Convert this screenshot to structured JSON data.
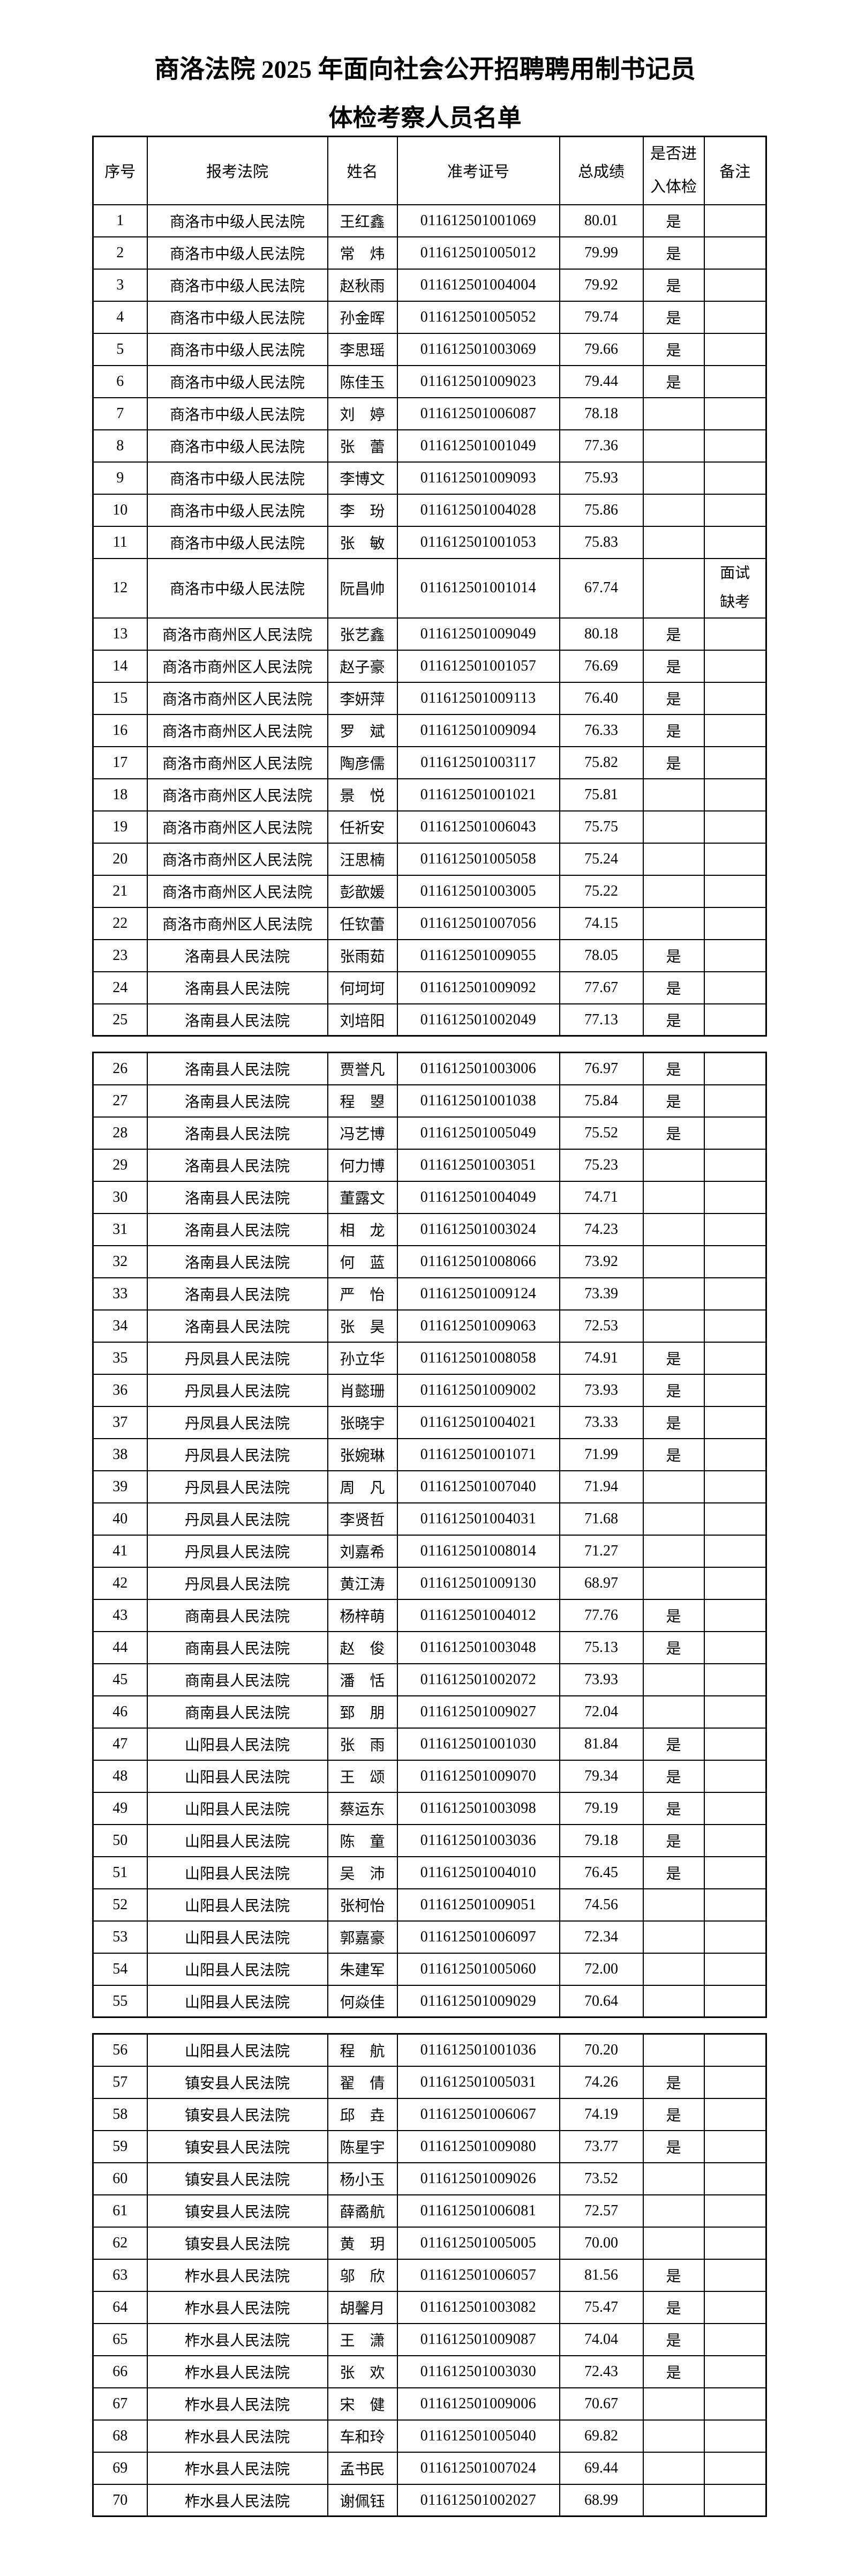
{
  "title_line1": "商洛法院 2025 年面向社会公开招聘聘用制书记员",
  "title_line2": "体检考察人员名单",
  "colors": {
    "text": "#000000",
    "border": "#000000",
    "background": "#ffffff"
  },
  "table": {
    "headers": {
      "index": "序号",
      "court": "报考法院",
      "name": "姓名",
      "ticket": "准考证号",
      "score": "总成绩",
      "enter": "是否进入体检",
      "remark": "备注"
    },
    "sections": [
      {
        "rows": [
          {
            "no": "1",
            "court": "商洛市中级人民法院",
            "name": "王红鑫",
            "ticket": "011612501001069",
            "score": "80.01",
            "enter": "是",
            "remark": ""
          },
          {
            "no": "2",
            "court": "商洛市中级人民法院",
            "name": "常　炜",
            "ticket": "011612501005012",
            "score": "79.99",
            "enter": "是",
            "remark": ""
          },
          {
            "no": "3",
            "court": "商洛市中级人民法院",
            "name": "赵秋雨",
            "ticket": "011612501004004",
            "score": "79.92",
            "enter": "是",
            "remark": ""
          },
          {
            "no": "4",
            "court": "商洛市中级人民法院",
            "name": "孙金晖",
            "ticket": "011612501005052",
            "score": "79.74",
            "enter": "是",
            "remark": ""
          },
          {
            "no": "5",
            "court": "商洛市中级人民法院",
            "name": "李思瑶",
            "ticket": "011612501003069",
            "score": "79.66",
            "enter": "是",
            "remark": ""
          },
          {
            "no": "6",
            "court": "商洛市中级人民法院",
            "name": "陈佳玉",
            "ticket": "011612501009023",
            "score": "79.44",
            "enter": "是",
            "remark": ""
          },
          {
            "no": "7",
            "court": "商洛市中级人民法院",
            "name": "刘　婷",
            "ticket": "011612501006087",
            "score": "78.18",
            "enter": "",
            "remark": ""
          },
          {
            "no": "8",
            "court": "商洛市中级人民法院",
            "name": "张　蕾",
            "ticket": "011612501001049",
            "score": "77.36",
            "enter": "",
            "remark": ""
          },
          {
            "no": "9",
            "court": "商洛市中级人民法院",
            "name": "李博文",
            "ticket": "011612501009093",
            "score": "75.93",
            "enter": "",
            "remark": ""
          },
          {
            "no": "10",
            "court": "商洛市中级人民法院",
            "name": "李　玢",
            "ticket": "011612501004028",
            "score": "75.86",
            "enter": "",
            "remark": ""
          },
          {
            "no": "11",
            "court": "商洛市中级人民法院",
            "name": "张　敏",
            "ticket": "011612501001053",
            "score": "75.83",
            "enter": "",
            "remark": ""
          },
          {
            "no": "12",
            "court": "商洛市中级人民法院",
            "name": "阮昌帅",
            "ticket": "011612501001014",
            "score": "67.74",
            "enter": "",
            "remark": "面试缺考"
          },
          {
            "no": "13",
            "court": "商洛市商州区人民法院",
            "name": "张艺鑫",
            "ticket": "011612501009049",
            "score": "80.18",
            "enter": "是",
            "remark": ""
          },
          {
            "no": "14",
            "court": "商洛市商州区人民法院",
            "name": "赵子豪",
            "ticket": "011612501001057",
            "score": "76.69",
            "enter": "是",
            "remark": ""
          },
          {
            "no": "15",
            "court": "商洛市商州区人民法院",
            "name": "李妍萍",
            "ticket": "011612501009113",
            "score": "76.40",
            "enter": "是",
            "remark": ""
          },
          {
            "no": "16",
            "court": "商洛市商州区人民法院",
            "name": "罗　斌",
            "ticket": "011612501009094",
            "score": "76.33",
            "enter": "是",
            "remark": ""
          },
          {
            "no": "17",
            "court": "商洛市商州区人民法院",
            "name": "陶彦儒",
            "ticket": "011612501003117",
            "score": "75.82",
            "enter": "是",
            "remark": ""
          },
          {
            "no": "18",
            "court": "商洛市商州区人民法院",
            "name": "景　悦",
            "ticket": "011612501001021",
            "score": "75.81",
            "enter": "",
            "remark": ""
          },
          {
            "no": "19",
            "court": "商洛市商州区人民法院",
            "name": "任祈安",
            "ticket": "011612501006043",
            "score": "75.75",
            "enter": "",
            "remark": ""
          },
          {
            "no": "20",
            "court": "商洛市商州区人民法院",
            "name": "汪思楠",
            "ticket": "011612501005058",
            "score": "75.24",
            "enter": "",
            "remark": ""
          },
          {
            "no": "21",
            "court": "商洛市商州区人民法院",
            "name": "彭歆媛",
            "ticket": "011612501003005",
            "score": "75.22",
            "enter": "",
            "remark": ""
          },
          {
            "no": "22",
            "court": "商洛市商州区人民法院",
            "name": "任钦蕾",
            "ticket": "011612501007056",
            "score": "74.15",
            "enter": "",
            "remark": ""
          },
          {
            "no": "23",
            "court": "洛南县人民法院",
            "name": "张雨茹",
            "ticket": "011612501009055",
            "score": "78.05",
            "enter": "是",
            "remark": ""
          },
          {
            "no": "24",
            "court": "洛南县人民法院",
            "name": "何坷坷",
            "ticket": "011612501009092",
            "score": "77.67",
            "enter": "是",
            "remark": ""
          },
          {
            "no": "25",
            "court": "洛南县人民法院",
            "name": "刘培阳",
            "ticket": "011612501002049",
            "score": "77.13",
            "enter": "是",
            "remark": ""
          }
        ]
      },
      {
        "rows": [
          {
            "no": "26",
            "court": "洛南县人民法院",
            "name": "贾誉凡",
            "ticket": "011612501003006",
            "score": "76.97",
            "enter": "是",
            "remark": ""
          },
          {
            "no": "27",
            "court": "洛南县人民法院",
            "name": "程　曌",
            "ticket": "011612501001038",
            "score": "75.84",
            "enter": "是",
            "remark": ""
          },
          {
            "no": "28",
            "court": "洛南县人民法院",
            "name": "冯艺博",
            "ticket": "011612501005049",
            "score": "75.52",
            "enter": "是",
            "remark": ""
          },
          {
            "no": "29",
            "court": "洛南县人民法院",
            "name": "何力博",
            "ticket": "011612501003051",
            "score": "75.23",
            "enter": "",
            "remark": ""
          },
          {
            "no": "30",
            "court": "洛南县人民法院",
            "name": "董露文",
            "ticket": "011612501004049",
            "score": "74.71",
            "enter": "",
            "remark": ""
          },
          {
            "no": "31",
            "court": "洛南县人民法院",
            "name": "相　龙",
            "ticket": "011612501003024",
            "score": "74.23",
            "enter": "",
            "remark": ""
          },
          {
            "no": "32",
            "court": "洛南县人民法院",
            "name": "何　蓝",
            "ticket": "011612501008066",
            "score": "73.92",
            "enter": "",
            "remark": ""
          },
          {
            "no": "33",
            "court": "洛南县人民法院",
            "name": "严　怡",
            "ticket": "011612501009124",
            "score": "73.39",
            "enter": "",
            "remark": ""
          },
          {
            "no": "34",
            "court": "洛南县人民法院",
            "name": "张　昊",
            "ticket": "011612501009063",
            "score": "72.53",
            "enter": "",
            "remark": ""
          },
          {
            "no": "35",
            "court": "丹凤县人民法院",
            "name": "孙立华",
            "ticket": "011612501008058",
            "score": "74.91",
            "enter": "是",
            "remark": ""
          },
          {
            "no": "36",
            "court": "丹凤县人民法院",
            "name": "肖懿珊",
            "ticket": "011612501009002",
            "score": "73.93",
            "enter": "是",
            "remark": ""
          },
          {
            "no": "37",
            "court": "丹凤县人民法院",
            "name": "张晓宇",
            "ticket": "011612501004021",
            "score": "73.33",
            "enter": "是",
            "remark": ""
          },
          {
            "no": "38",
            "court": "丹凤县人民法院",
            "name": "张婉琳",
            "ticket": "011612501001071",
            "score": "71.99",
            "enter": "是",
            "remark": ""
          },
          {
            "no": "39",
            "court": "丹凤县人民法院",
            "name": "周　凡",
            "ticket": "011612501007040",
            "score": "71.94",
            "enter": "",
            "remark": ""
          },
          {
            "no": "40",
            "court": "丹凤县人民法院",
            "name": "李贤哲",
            "ticket": "011612501004031",
            "score": "71.68",
            "enter": "",
            "remark": ""
          },
          {
            "no": "41",
            "court": "丹凤县人民法院",
            "name": "刘嘉希",
            "ticket": "011612501008014",
            "score": "71.27",
            "enter": "",
            "remark": ""
          },
          {
            "no": "42",
            "court": "丹凤县人民法院",
            "name": "黄江涛",
            "ticket": "011612501009130",
            "score": "68.97",
            "enter": "",
            "remark": ""
          },
          {
            "no": "43",
            "court": "商南县人民法院",
            "name": "杨梓萌",
            "ticket": "011612501004012",
            "score": "77.76",
            "enter": "是",
            "remark": ""
          },
          {
            "no": "44",
            "court": "商南县人民法院",
            "name": "赵　俊",
            "ticket": "011612501003048",
            "score": "75.13",
            "enter": "是",
            "remark": ""
          },
          {
            "no": "45",
            "court": "商南县人民法院",
            "name": "潘　恬",
            "ticket": "011612501002072",
            "score": "73.93",
            "enter": "",
            "remark": ""
          },
          {
            "no": "46",
            "court": "商南县人民法院",
            "name": "郅　朋",
            "ticket": "011612501009027",
            "score": "72.04",
            "enter": "",
            "remark": ""
          },
          {
            "no": "47",
            "court": "山阳县人民法院",
            "name": "张　雨",
            "ticket": "011612501001030",
            "score": "81.84",
            "enter": "是",
            "remark": ""
          },
          {
            "no": "48",
            "court": "山阳县人民法院",
            "name": "王　颂",
            "ticket": "011612501009070",
            "score": "79.34",
            "enter": "是",
            "remark": ""
          },
          {
            "no": "49",
            "court": "山阳县人民法院",
            "name": "蔡运东",
            "ticket": "011612501003098",
            "score": "79.19",
            "enter": "是",
            "remark": ""
          },
          {
            "no": "50",
            "court": "山阳县人民法院",
            "name": "陈　童",
            "ticket": "011612501003036",
            "score": "79.18",
            "enter": "是",
            "remark": ""
          },
          {
            "no": "51",
            "court": "山阳县人民法院",
            "name": "吴　沛",
            "ticket": "011612501004010",
            "score": "76.45",
            "enter": "是",
            "remark": ""
          },
          {
            "no": "52",
            "court": "山阳县人民法院",
            "name": "张柯怡",
            "ticket": "011612501009051",
            "score": "74.56",
            "enter": "",
            "remark": ""
          },
          {
            "no": "53",
            "court": "山阳县人民法院",
            "name": "郭嘉豪",
            "ticket": "011612501006097",
            "score": "72.34",
            "enter": "",
            "remark": ""
          },
          {
            "no": "54",
            "court": "山阳县人民法院",
            "name": "朱建军",
            "ticket": "011612501005060",
            "score": "72.00",
            "enter": "",
            "remark": ""
          },
          {
            "no": "55",
            "court": "山阳县人民法院",
            "name": "何焱佳",
            "ticket": "011612501009029",
            "score": "70.64",
            "enter": "",
            "remark": ""
          }
        ]
      },
      {
        "rows": [
          {
            "no": "56",
            "court": "山阳县人民法院",
            "name": "程　航",
            "ticket": "011612501001036",
            "score": "70.20",
            "enter": "",
            "remark": ""
          },
          {
            "no": "57",
            "court": "镇安县人民法院",
            "name": "翟　倩",
            "ticket": "011612501005031",
            "score": "74.26",
            "enter": "是",
            "remark": ""
          },
          {
            "no": "58",
            "court": "镇安县人民法院",
            "name": "邱　垚",
            "ticket": "011612501006067",
            "score": "74.19",
            "enter": "是",
            "remark": ""
          },
          {
            "no": "59",
            "court": "镇安县人民法院",
            "name": "陈星宇",
            "ticket": "011612501009080",
            "score": "73.77",
            "enter": "是",
            "remark": ""
          },
          {
            "no": "60",
            "court": "镇安县人民法院",
            "name": "杨小玉",
            "ticket": "011612501009026",
            "score": "73.52",
            "enter": "",
            "remark": ""
          },
          {
            "no": "61",
            "court": "镇安县人民法院",
            "name": "薛矞航",
            "ticket": "011612501006081",
            "score": "72.57",
            "enter": "",
            "remark": ""
          },
          {
            "no": "62",
            "court": "镇安县人民法院",
            "name": "黄　玥",
            "ticket": "011612501005005",
            "score": "70.00",
            "enter": "",
            "remark": ""
          },
          {
            "no": "63",
            "court": "柞水县人民法院",
            "name": "邬　欣",
            "ticket": "011612501006057",
            "score": "81.56",
            "enter": "是",
            "remark": ""
          },
          {
            "no": "64",
            "court": "柞水县人民法院",
            "name": "胡馨月",
            "ticket": "011612501003082",
            "score": "75.47",
            "enter": "是",
            "remark": ""
          },
          {
            "no": "65",
            "court": "柞水县人民法院",
            "name": "王　潇",
            "ticket": "011612501009087",
            "score": "74.04",
            "enter": "是",
            "remark": ""
          },
          {
            "no": "66",
            "court": "柞水县人民法院",
            "name": "张　欢",
            "ticket": "011612501003030",
            "score": "72.43",
            "enter": "是",
            "remark": ""
          },
          {
            "no": "67",
            "court": "柞水县人民法院",
            "name": "宋　健",
            "ticket": "011612501009006",
            "score": "70.67",
            "enter": "",
            "remark": ""
          },
          {
            "no": "68",
            "court": "柞水县人民法院",
            "name": "车和玲",
            "ticket": "011612501005040",
            "score": "69.82",
            "enter": "",
            "remark": ""
          },
          {
            "no": "69",
            "court": "柞水县人民法院",
            "name": "孟书民",
            "ticket": "011612501007024",
            "score": "69.44",
            "enter": "",
            "remark": ""
          },
          {
            "no": "70",
            "court": "柞水县人民法院",
            "name": "谢佩钰",
            "ticket": "011612501002027",
            "score": "68.99",
            "enter": "",
            "remark": ""
          }
        ]
      }
    ]
  }
}
